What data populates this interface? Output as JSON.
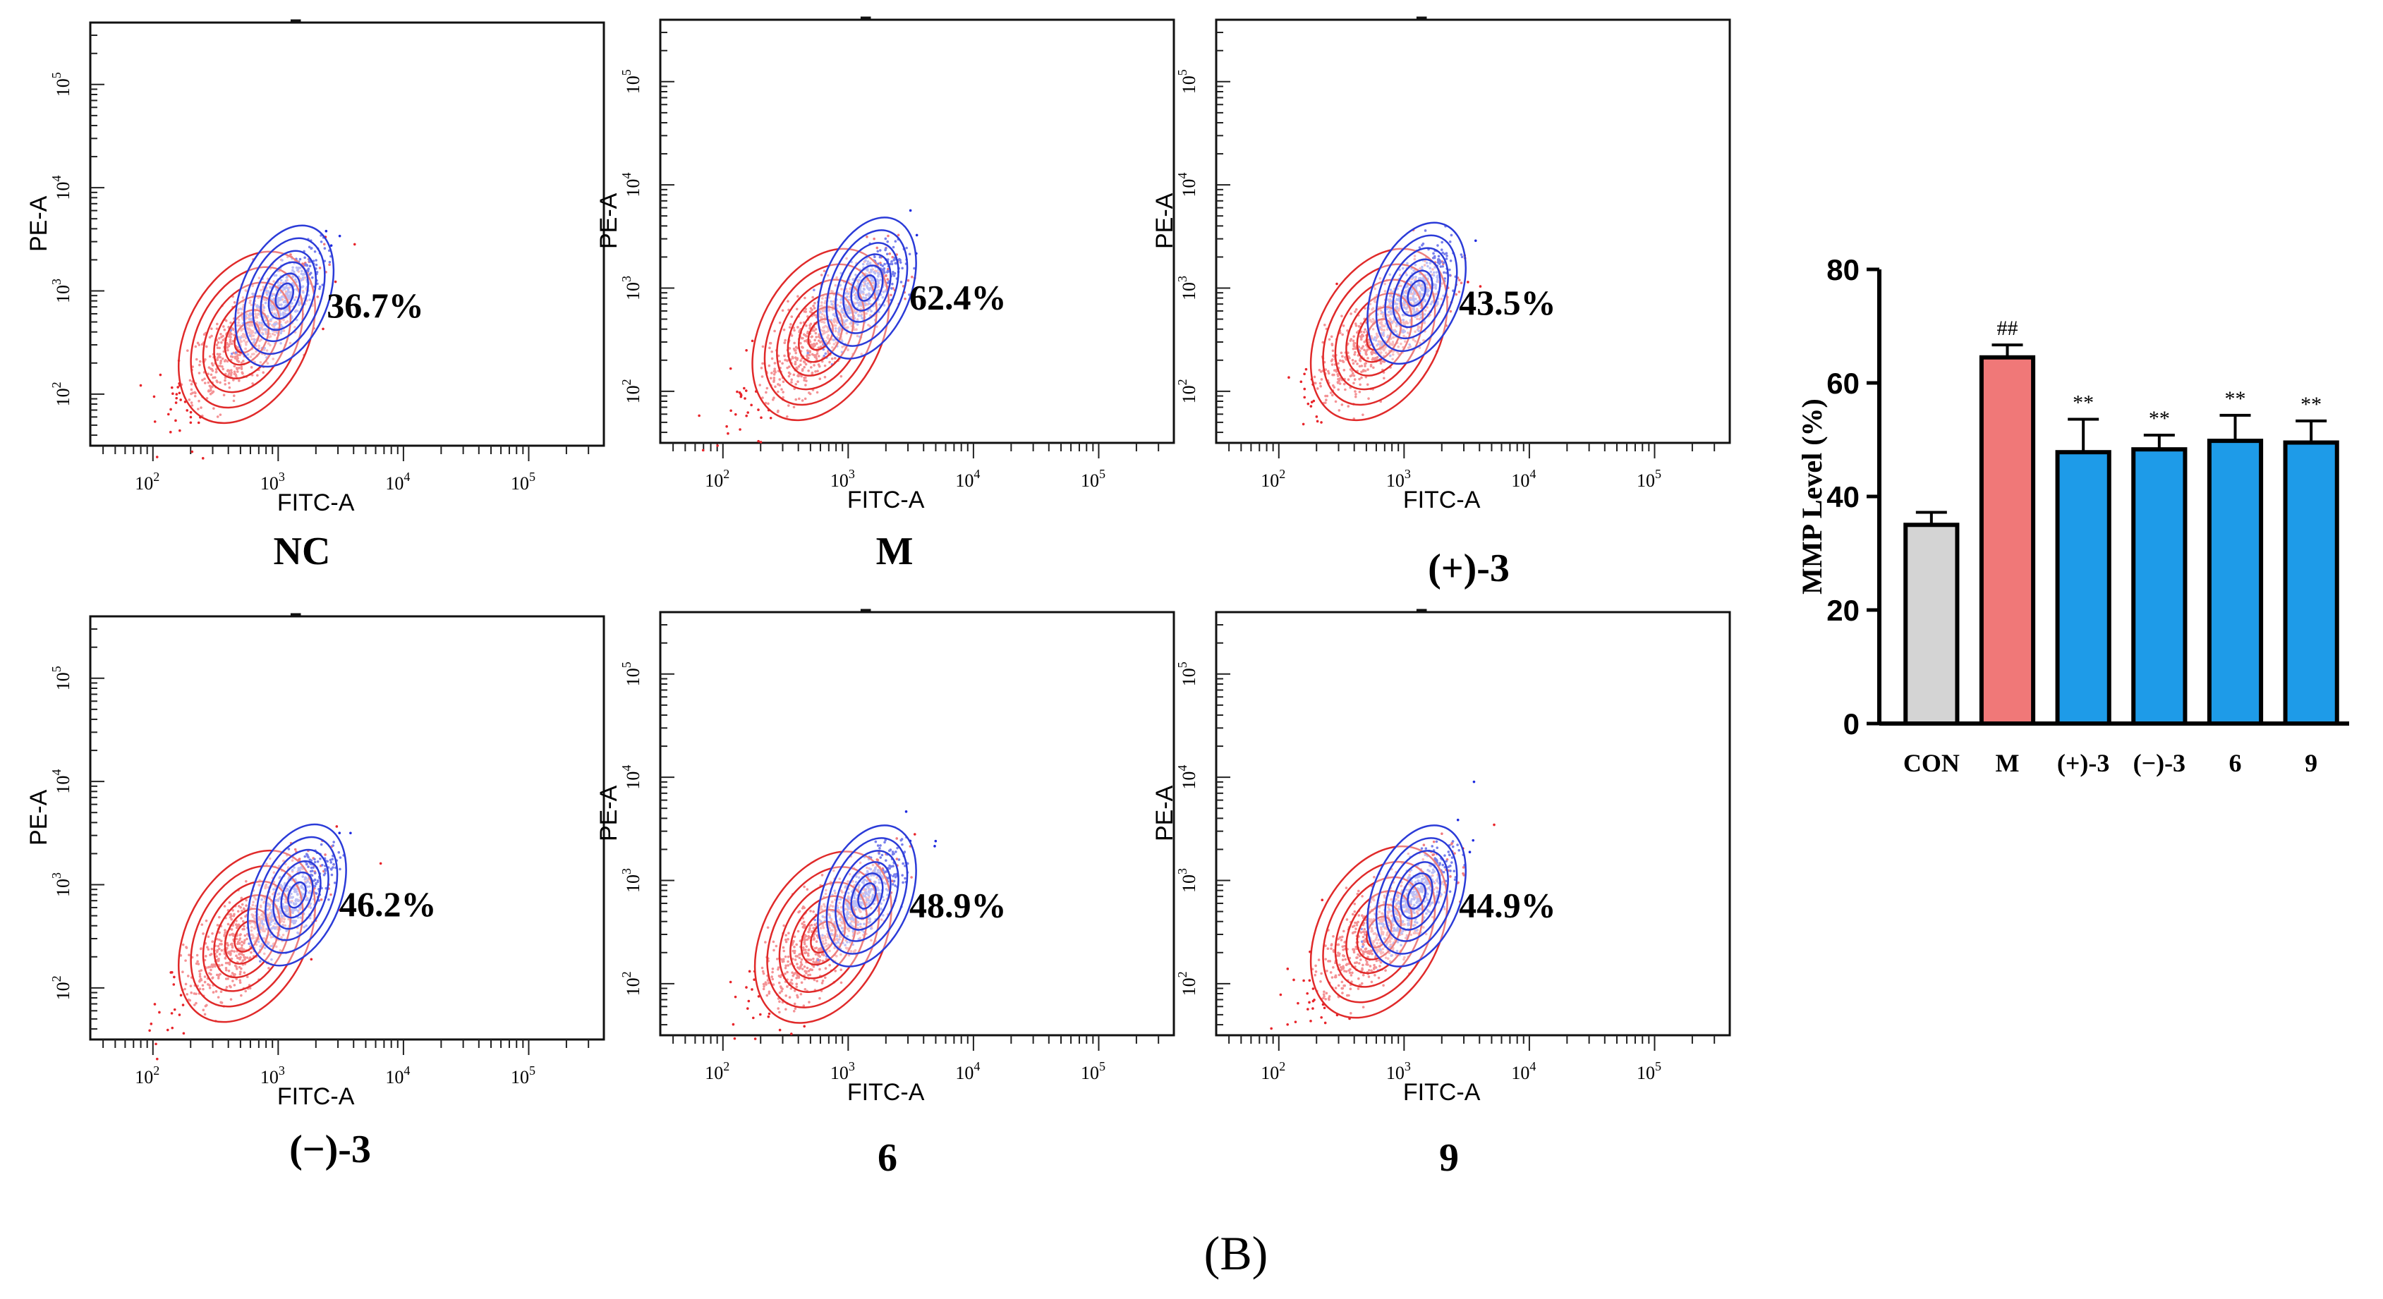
{
  "figure_label": "(B)",
  "colors": {
    "scatter_red": "#e8242a",
    "scatter_blue": "#1f2be0",
    "contour_red": "#e02a2a",
    "contour_blue": "#2b3bd8",
    "bar_gray": "#d4d4d4",
    "bar_red": "#f07878",
    "bar_blue": "#1e9be8"
  },
  "flow_axis": {
    "xlabel": "FITC-A",
    "ylabel": "PE-A",
    "xticks": [
      "10",
      "10",
      "10",
      "10"
    ],
    "xtick_exps": [
      "2",
      "3",
      "4",
      "5"
    ],
    "yticks": [
      "10",
      "10",
      "10",
      "10"
    ],
    "ytick_exps": [
      "2",
      "3",
      "4",
      "5"
    ]
  },
  "panels": [
    {
      "label": "NC",
      "percent": "36.7%",
      "value": 36.7,
      "red_center": [
        2.75,
        2.55
      ],
      "blue_center": [
        3.05,
        2.95
      ]
    },
    {
      "label": "M",
      "percent": "62.4%",
      "value": 62.4,
      "red_center": [
        2.78,
        2.55
      ],
      "blue_center": [
        3.15,
        3.0
      ]
    },
    {
      "label": "(+)-3",
      "percent": "43.5%",
      "value": 43.5,
      "red_center": [
        2.8,
        2.55
      ],
      "blue_center": [
        3.1,
        2.95
      ]
    },
    {
      "label": "(−)-3",
      "percent": "46.2%",
      "value": 46.2,
      "red_center": [
        2.75,
        2.5
      ],
      "blue_center": [
        3.15,
        2.9
      ]
    },
    {
      "label": "6",
      "percent": "48.9%",
      "value": 48.9,
      "red_center": [
        2.8,
        2.45
      ],
      "blue_center": [
        3.15,
        2.85
      ]
    },
    {
      "label": "9",
      "percent": "44.9%",
      "value": 44.9,
      "red_center": [
        2.8,
        2.5
      ],
      "blue_center": [
        3.1,
        2.85
      ]
    }
  ],
  "chart_data": {
    "type": "bar",
    "title": "",
    "xlabel": "",
    "ylabel": "MMP Level (%)",
    "ylim": [
      0,
      80
    ],
    "yticks": [
      "0",
      "20",
      "40",
      "60",
      "80"
    ],
    "categories": [
      "CON",
      "M",
      "(+)-3",
      "(−)-3",
      "6",
      "9"
    ],
    "values": [
      35,
      64.5,
      47.8,
      48.3,
      49.8,
      49.5
    ],
    "errors": [
      2.2,
      2.2,
      5.8,
      2.5,
      4.5,
      3.8
    ],
    "annotations": [
      "",
      "##",
      "**",
      "**",
      "**",
      "**"
    ],
    "bar_colors": [
      "#d4d4d4",
      "#f07878",
      "#1e9be8",
      "#1e9be8",
      "#1e9be8",
      "#1e9be8"
    ]
  }
}
